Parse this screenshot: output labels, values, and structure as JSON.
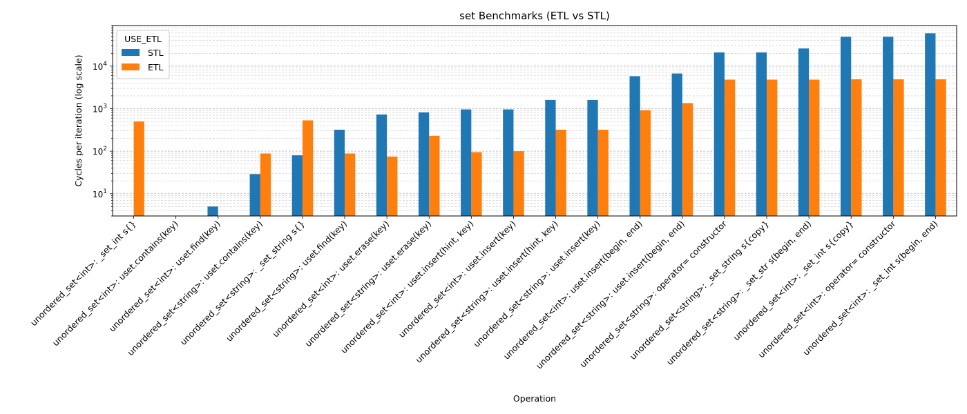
{
  "chart_data": {
    "type": "bar",
    "title": "set Benchmarks (ETL vs STL)",
    "xlabel": "Operation",
    "ylabel": "Cycles per iteration (log scale)",
    "yscale": "log",
    "ylim": [
      3,
      90000
    ],
    "grid": "y major and minor, dashed",
    "legend": {
      "title": "USE_ETL",
      "placement": "top-left"
    },
    "yticks": [
      {
        "value": 10,
        "base": "10",
        "exp": "1"
      },
      {
        "value": 100,
        "base": "10",
        "exp": "2"
      },
      {
        "value": 1000,
        "base": "10",
        "exp": "3"
      },
      {
        "value": 10000,
        "base": "10",
        "exp": "4"
      }
    ],
    "categories": [
      "unordered_set<int>: _set_int s{}",
      "unordered_set<int>: uset.contains(key)",
      "unordered_set<int>: uset.find(key)",
      "unordered_set<string>: uset.contains(key)",
      "unordered_set<string>: _set_string s{}",
      "unordered_set<string>: uset.find(key)",
      "unordered_set<int>: uset.erase(key)",
      "unordered_set<string>: uset.erase(key)",
      "unordered_set<int>: uset.insert(hint, key)",
      "unordered_set<int>: uset.insert(key)",
      "unordered_set<string>: uset.insert(hint, key)",
      "unordered_set<string>: uset.insert(key)",
      "unordered_set<int>: uset.insert(begin, end)",
      "unordered_set<string>: uset.insert(begin, end)",
      "unordered_set<string>: operator= constructor",
      "unordered_set<string>: _set_string s{copy}",
      "unordered_set<string>: _set_str s(begin, end)",
      "unordered_set<int>: _set_int s{copy}",
      "unordered_set<int>: operator= constructor",
      "unordered_set<int>: _set_int s(begin, end)"
    ],
    "series": [
      {
        "name": "STL",
        "color": "#1f77b4",
        "values": [
          null,
          null,
          5,
          29,
          80,
          320,
          730,
          820,
          960,
          960,
          1600,
          1600,
          5800,
          6700,
          21000,
          21000,
          26000,
          49000,
          49000,
          59000
        ]
      },
      {
        "name": "ETL",
        "color": "#ff7f0e",
        "values": [
          500,
          null,
          null,
          88,
          530,
          88,
          75,
          230,
          95,
          100,
          320,
          320,
          920,
          1350,
          4800,
          4800,
          4800,
          4900,
          4900,
          4900
        ]
      }
    ]
  }
}
